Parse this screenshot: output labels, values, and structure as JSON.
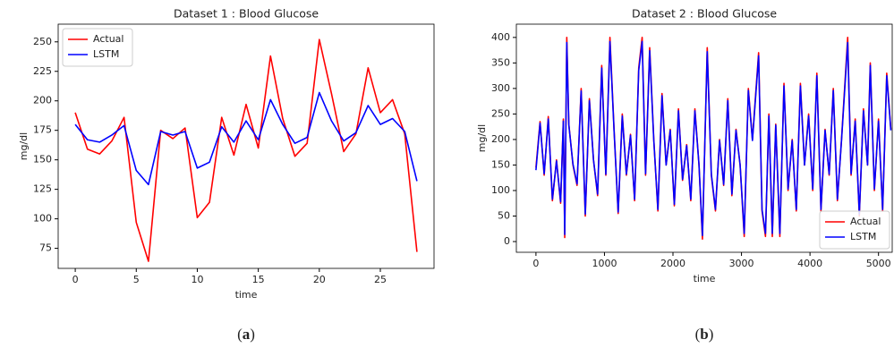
{
  "chart_data": [
    {
      "type": "line",
      "title": "Dataset 1 : Blood Glucose",
      "xlabel": "time",
      "ylabel": "mg/dl",
      "label": "(a)",
      "x": [
        0,
        1,
        2,
        3,
        4,
        5,
        6,
        7,
        8,
        9,
        10,
        11,
        12,
        13,
        14,
        15,
        16,
        17,
        18,
        19,
        20,
        21,
        22,
        23,
        24,
        25,
        26,
        27,
        28
      ],
      "series": [
        {
          "name": "Actual",
          "color": "#ff0000",
          "values": [
            190,
            159,
            155,
            166,
            186,
            97,
            64,
            175,
            168,
            177,
            101,
            114,
            186,
            154,
            197,
            160,
            238,
            185,
            153,
            164,
            252,
            206,
            157,
            172,
            228,
            190,
            201,
            172,
            72
          ]
        },
        {
          "name": "LSTM",
          "color": "#0000ff",
          "values": [
            180,
            167,
            165,
            171,
            179,
            141,
            129,
            174,
            171,
            174,
            143,
            148,
            178,
            165,
            183,
            167,
            201,
            180,
            164,
            169,
            207,
            183,
            166,
            173,
            196,
            180,
            185,
            174,
            132
          ]
        }
      ],
      "xlim": [
        -1.4,
        29.4
      ],
      "ylim": [
        58,
        265
      ],
      "xticks": [
        0,
        5,
        10,
        15,
        20,
        25
      ],
      "yticks": [
        75,
        100,
        125,
        150,
        175,
        200,
        225,
        250
      ],
      "legend": "upper left"
    },
    {
      "type": "line",
      "title": "Dataset 2 : Blood Glucose",
      "xlabel": "time",
      "ylabel": "mg/dl",
      "label": "(b)",
      "x": [
        0,
        60,
        120,
        180,
        240,
        300,
        360,
        400,
        420,
        450,
        480,
        540,
        600,
        660,
        720,
        780,
        840,
        900,
        960,
        1020,
        1080,
        1140,
        1200,
        1260,
        1320,
        1380,
        1440,
        1500,
        1550,
        1600,
        1660,
        1720,
        1780,
        1840,
        1900,
        1960,
        2020,
        2080,
        2140,
        2200,
        2260,
        2320,
        2380,
        2430,
        2500,
        2560,
        2620,
        2680,
        2740,
        2800,
        2860,
        2920,
        2980,
        3040,
        3100,
        3160,
        3250,
        3300,
        3350,
        3400,
        3450,
        3500,
        3560,
        3620,
        3680,
        3740,
        3800,
        3860,
        3920,
        3980,
        4040,
        4100,
        4160,
        4220,
        4280,
        4340,
        4400,
        4460,
        4550,
        4600,
        4660,
        4720,
        4780,
        4840,
        4880,
        4940,
        5000,
        5060,
        5120,
        5180
      ],
      "series": [
        {
          "name": "Actual",
          "color": "#ff0000",
          "values": [
            145,
            235,
            130,
            245,
            80,
            160,
            75,
            240,
            8,
            400,
            230,
            150,
            110,
            300,
            50,
            280,
            160,
            90,
            345,
            130,
            400,
            220,
            55,
            250,
            130,
            210,
            80,
            340,
            400,
            130,
            380,
            200,
            60,
            290,
            150,
            220,
            70,
            260,
            120,
            190,
            80,
            260,
            150,
            5,
            380,
            130,
            60,
            200,
            110,
            280,
            90,
            220,
            150,
            10,
            300,
            200,
            370,
            60,
            10,
            250,
            10,
            230,
            10,
            310,
            100,
            200,
            60,
            310,
            150,
            250,
            100,
            330,
            60,
            220,
            130,
            300,
            80,
            200,
            400,
            130,
            240,
            50,
            260,
            150,
            350,
            100,
            240,
            60,
            330,
            220
          ]
        },
        {
          "name": "LSTM",
          "color": "#0000ff",
          "values": [
            140,
            232,
            133,
            240,
            83,
            158,
            78,
            236,
            14,
            390,
            228,
            152,
            113,
            295,
            54,
            276,
            160,
            93,
            340,
            132,
            392,
            218,
            58,
            246,
            132,
            208,
            83,
            335,
            392,
            133,
            374,
            198,
            63,
            286,
            150,
            218,
            73,
            256,
            122,
            188,
            83,
            256,
            150,
            12,
            372,
            132,
            63,
            198,
            112,
            276,
            93,
            218,
            150,
            16,
            296,
            198,
            364,
            63,
            16,
            246,
            16,
            228,
            16,
            305,
            103,
            198,
            63,
            305,
            150,
            246,
            103,
            325,
            63,
            218,
            132,
            296,
            83,
            198,
            390,
            133,
            236,
            54,
            256,
            150,
            345,
            103,
            236,
            63,
            325,
            218
          ]
        }
      ],
      "xlim": [
        -286,
        5200
      ],
      "ylim": [
        -21,
        426
      ],
      "xticks": [
        0,
        1000,
        2000,
        3000,
        4000,
        5000
      ],
      "yticks": [
        0,
        50,
        100,
        150,
        200,
        250,
        300,
        350,
        400
      ],
      "legend": "lower right"
    }
  ]
}
